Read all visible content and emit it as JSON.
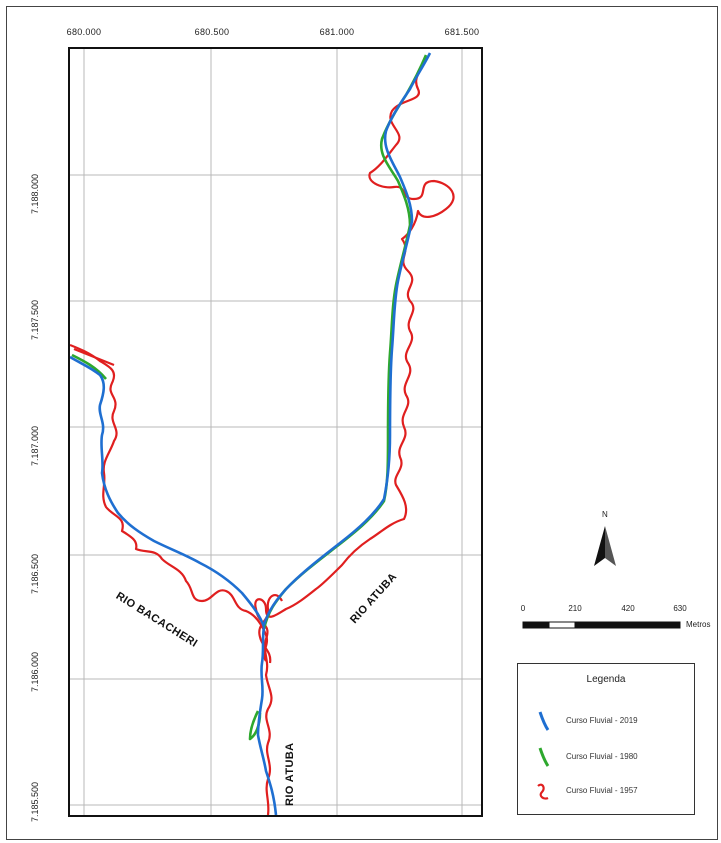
{
  "map": {
    "x_ticks": [
      "680.000",
      "680.500",
      "681.000",
      "681.500"
    ],
    "y_ticks": [
      "7.188.000",
      "7.187.500",
      "7.187.000",
      "7.186.500",
      "7.186.000",
      "7.185.500"
    ],
    "rivers": {
      "bacacheri": "RIO BACACHERI",
      "atuba_upper": "RIO ATUBA",
      "atuba_lower": "RIO ATUBA"
    }
  },
  "north_arrow": {
    "label": "N"
  },
  "scale": {
    "ticks": [
      "0",
      "210",
      "420",
      "630"
    ],
    "unit": "Metros"
  },
  "legend": {
    "title": "Legenda",
    "items": [
      {
        "label": "Curso Fluvial - 2019",
        "color": "#1f6fd1"
      },
      {
        "label": "Curso Fluvial - 1980",
        "color": "#2ea82e"
      },
      {
        "label": "Curso Fluvial - 1957",
        "color": "#e01f1f"
      }
    ]
  }
}
